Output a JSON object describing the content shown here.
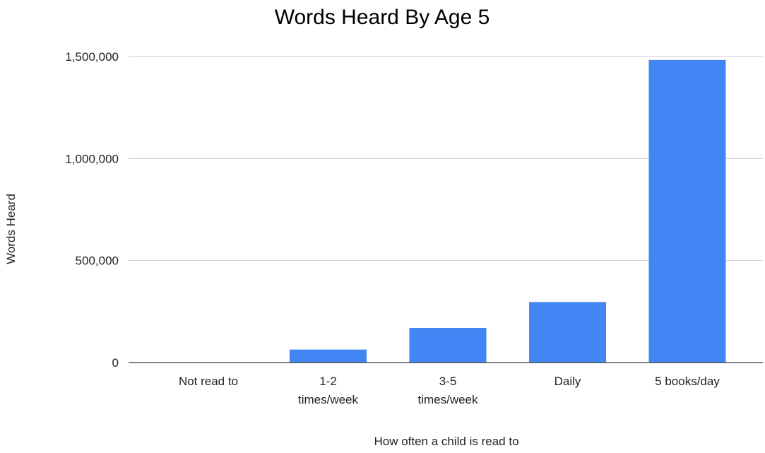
{
  "chart_data": {
    "type": "bar",
    "title": "Words Heard By Age 5",
    "xlabel": "How often a child is read to",
    "ylabel": "Words Heard",
    "categories": [
      [
        "Not read to"
      ],
      [
        "1-2",
        "times/week"
      ],
      [
        "3-5",
        "times/week"
      ],
      [
        "Daily"
      ],
      [
        "5 books/day"
      ]
    ],
    "values": [
      0,
      63570,
      169520,
      296660,
      1483300
    ],
    "ylim": [
      0,
      1500000
    ],
    "yticks": [
      0,
      500000,
      1000000,
      1500000
    ],
    "ytick_labels": [
      "0",
      "500,000",
      "1,000,000",
      "1,500,000"
    ],
    "grid": true,
    "legend": "none",
    "colors": {
      "bar": "#4285f4",
      "grid": "#cccccc",
      "axis": "#333333"
    }
  }
}
